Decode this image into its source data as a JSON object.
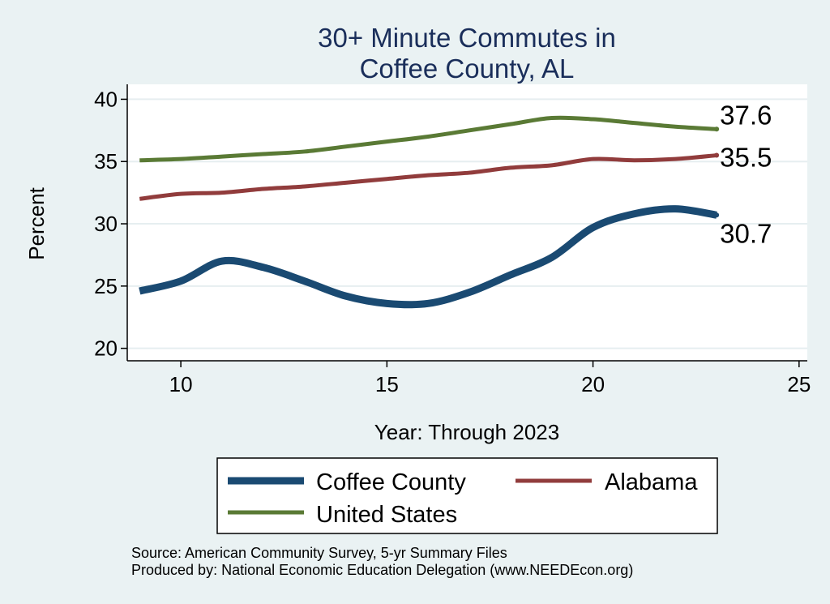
{
  "chart_data": {
    "type": "line",
    "title": [
      "30+ Minute Commutes in",
      "Coffee County, AL"
    ],
    "xlabel": "Year: Through 2023",
    "ylabel": "Percent",
    "xlim": [
      8.7,
      25.2
    ],
    "ylim": [
      19.0,
      41.2
    ],
    "xticks": [
      10,
      15,
      20,
      25
    ],
    "yticks": [
      20,
      25,
      30,
      35,
      40
    ],
    "x": [
      9,
      10,
      11,
      12,
      13,
      14,
      15,
      16,
      17,
      18,
      19,
      20,
      21,
      22,
      23
    ],
    "series": [
      {
        "name": "Coffee County",
        "color": "#1a4a72",
        "end_label": "30.7",
        "values": [
          24.6,
          25.4,
          27.0,
          26.5,
          25.4,
          24.2,
          23.6,
          23.6,
          24.5,
          25.9,
          27.3,
          29.7,
          30.8,
          31.2,
          30.7
        ]
      },
      {
        "name": "Alabama",
        "color": "#913c3c",
        "end_label": "35.5",
        "values": [
          32.0,
          32.4,
          32.5,
          32.8,
          33.0,
          33.3,
          33.6,
          33.9,
          34.1,
          34.5,
          34.7,
          35.2,
          35.1,
          35.2,
          35.5
        ]
      },
      {
        "name": "United States",
        "color": "#5a7a35",
        "end_label": "37.6",
        "values": [
          35.1,
          35.2,
          35.4,
          35.6,
          35.8,
          36.2,
          36.6,
          37.0,
          37.5,
          38.0,
          38.5,
          38.4,
          38.1,
          37.8,
          37.6
        ]
      }
    ],
    "legend": [
      "Coffee County",
      "Alabama",
      "United States"
    ],
    "source": [
      "Source: American Community Survey, 5-yr Summary Files",
      "Produced by: National Economic Education Delegation (www.NEEDEcon.org)"
    ]
  }
}
